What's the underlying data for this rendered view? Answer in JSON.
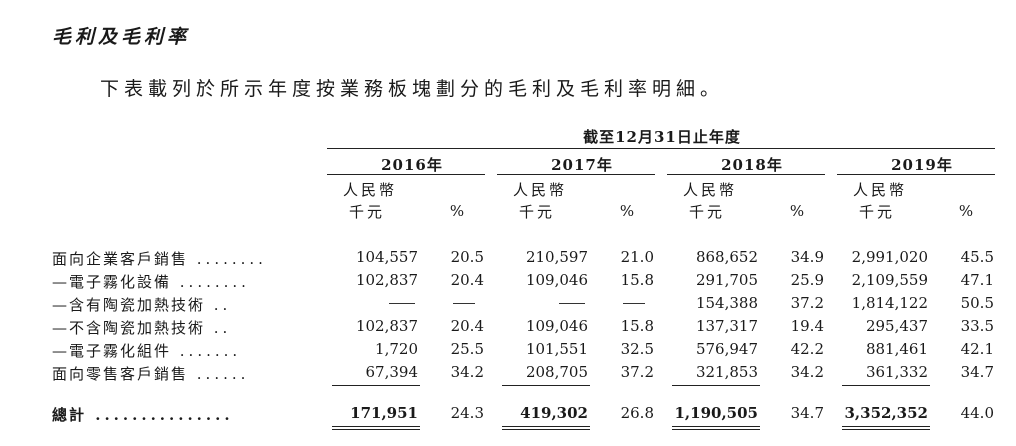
{
  "title": "毛利及毛利率",
  "intro": "下表載列於所示年度按業務板塊劃分的毛利及毛利率明細。",
  "period_header": "截至12月31日止年度",
  "years": [
    "2016年",
    "2017年",
    "2018年",
    "2019年"
  ],
  "unit_header": {
    "line1": "人民幣",
    "line2": "千元",
    "pct": "%"
  },
  "rows": [
    {
      "label": "面向企業客戶銷售",
      "dots": "........",
      "values": [
        "104,557",
        "20.5",
        "210,597",
        "21.0",
        "868,652",
        "34.9",
        "2,991,020",
        "45.5"
      ]
    },
    {
      "label": "—電子霧化設備",
      "dots": "........",
      "values": [
        "102,837",
        "20.4",
        "109,046",
        "15.8",
        "291,705",
        "25.9",
        "2,109,559",
        "47.1"
      ]
    },
    {
      "label": "—含有陶瓷加熱技術",
      "dots": "..",
      "values": [
        "—",
        "—",
        "—",
        "—",
        "154,388",
        "37.2",
        "1,814,122",
        "50.5"
      ]
    },
    {
      "label": "—不含陶瓷加熱技術",
      "dots": "..",
      "values": [
        "102,837",
        "20.4",
        "109,046",
        "15.8",
        "137,317",
        "19.4",
        "295,437",
        "33.5"
      ]
    },
    {
      "label": "—電子霧化組件",
      "dots": ".......",
      "values": [
        "1,720",
        "25.5",
        "101,551",
        "32.5",
        "576,947",
        "42.2",
        "881,461",
        "42.1"
      ]
    },
    {
      "label": "面向零售客戶銷售",
      "dots": "......",
      "values": [
        "67,394",
        "34.2",
        "208,705",
        "37.2",
        "321,853",
        "34.2",
        "361,332",
        "34.7"
      ]
    }
  ],
  "total": {
    "label": "總計",
    "dots": "...............",
    "values": [
      "171,951",
      "24.3",
      "419,302",
      "26.8",
      "1,190,505",
      "34.7",
      "3,352,352",
      "44.0"
    ]
  }
}
